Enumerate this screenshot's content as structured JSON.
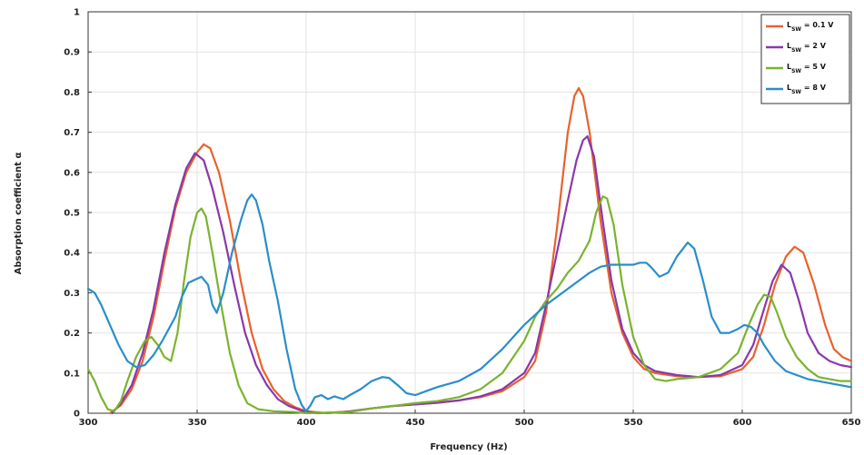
{
  "chart_data": {
    "type": "line",
    "title": "",
    "xlabel": "Frequency (Hz)",
    "ylabel": "Absorption coefficient α",
    "xlim": [
      300,
      650
    ],
    "ylim": [
      0,
      1
    ],
    "xticks": [
      300,
      350,
      400,
      450,
      500,
      550,
      600,
      650
    ],
    "yticks": [
      0,
      0.1,
      0.2,
      0.3,
      0.4,
      0.5,
      0.6,
      0.7,
      0.8,
      0.9,
      1
    ],
    "ytick_labels": [
      "0",
      "0.1",
      "0.2",
      "0.3",
      "0.4",
      "0.5",
      "0.6",
      "0.7",
      "0.8",
      "0.9",
      "1"
    ],
    "grid": true,
    "legend_position": "top-right",
    "series": [
      {
        "name": "L_SW = 0.1 V",
        "legend_main": "L",
        "legend_sub": "SW",
        "legend_rest": " = 0.1 V",
        "color": "#e8622c",
        "points": [
          [
            310,
            0
          ],
          [
            315,
            0.02
          ],
          [
            320,
            0.06
          ],
          [
            325,
            0.13
          ],
          [
            330,
            0.24
          ],
          [
            335,
            0.38
          ],
          [
            340,
            0.51
          ],
          [
            345,
            0.6
          ],
          [
            350,
            0.65
          ],
          [
            353,
            0.67
          ],
          [
            356,
            0.66
          ],
          [
            360,
            0.6
          ],
          [
            365,
            0.48
          ],
          [
            370,
            0.33
          ],
          [
            375,
            0.2
          ],
          [
            380,
            0.11
          ],
          [
            385,
            0.06
          ],
          [
            390,
            0.03
          ],
          [
            395,
            0.015
          ],
          [
            400,
            0.005
          ],
          [
            410,
            0
          ],
          [
            420,
            0.005
          ],
          [
            430,
            0.012
          ],
          [
            440,
            0.018
          ],
          [
            450,
            0.022
          ],
          [
            460,
            0.026
          ],
          [
            470,
            0.032
          ],
          [
            480,
            0.04
          ],
          [
            490,
            0.055
          ],
          [
            500,
            0.09
          ],
          [
            505,
            0.13
          ],
          [
            510,
            0.25
          ],
          [
            515,
            0.46
          ],
          [
            520,
            0.7
          ],
          [
            523,
            0.79
          ],
          [
            525,
            0.81
          ],
          [
            527,
            0.79
          ],
          [
            530,
            0.7
          ],
          [
            535,
            0.48
          ],
          [
            540,
            0.3
          ],
          [
            545,
            0.2
          ],
          [
            550,
            0.14
          ],
          [
            555,
            0.11
          ],
          [
            560,
            0.1
          ],
          [
            570,
            0.092
          ],
          [
            580,
            0.09
          ],
          [
            590,
            0.092
          ],
          [
            600,
            0.11
          ],
          [
            605,
            0.14
          ],
          [
            610,
            0.22
          ],
          [
            615,
            0.32
          ],
          [
            620,
            0.39
          ],
          [
            624,
            0.415
          ],
          [
            628,
            0.4
          ],
          [
            633,
            0.32
          ],
          [
            638,
            0.22
          ],
          [
            642,
            0.16
          ],
          [
            646,
            0.14
          ],
          [
            650,
            0.13
          ]
        ]
      },
      {
        "name": "L_SW = 2 V",
        "legend_main": "L",
        "legend_sub": "SW",
        "legend_rest": " = 2 V",
        "color": "#8a37ab",
        "points": [
          [
            311,
            0
          ],
          [
            315,
            0.025
          ],
          [
            320,
            0.07
          ],
          [
            325,
            0.15
          ],
          [
            330,
            0.26
          ],
          [
            335,
            0.4
          ],
          [
            340,
            0.52
          ],
          [
            345,
            0.61
          ],
          [
            349,
            0.648
          ],
          [
            353,
            0.63
          ],
          [
            357,
            0.56
          ],
          [
            362,
            0.45
          ],
          [
            367,
            0.32
          ],
          [
            372,
            0.2
          ],
          [
            377,
            0.12
          ],
          [
            382,
            0.07
          ],
          [
            387,
            0.035
          ],
          [
            392,
            0.018
          ],
          [
            398,
            0.006
          ],
          [
            405,
            0
          ],
          [
            420,
            0.004
          ],
          [
            430,
            0.012
          ],
          [
            440,
            0.018
          ],
          [
            450,
            0.022
          ],
          [
            460,
            0.026
          ],
          [
            470,
            0.032
          ],
          [
            480,
            0.042
          ],
          [
            490,
            0.06
          ],
          [
            500,
            0.1
          ],
          [
            505,
            0.15
          ],
          [
            510,
            0.27
          ],
          [
            515,
            0.4
          ],
          [
            520,
            0.53
          ],
          [
            524,
            0.63
          ],
          [
            527,
            0.68
          ],
          [
            529,
            0.69
          ],
          [
            532,
            0.64
          ],
          [
            536,
            0.48
          ],
          [
            540,
            0.33
          ],
          [
            545,
            0.21
          ],
          [
            550,
            0.15
          ],
          [
            555,
            0.12
          ],
          [
            560,
            0.105
          ],
          [
            570,
            0.095
          ],
          [
            580,
            0.09
          ],
          [
            590,
            0.095
          ],
          [
            600,
            0.12
          ],
          [
            605,
            0.17
          ],
          [
            610,
            0.26
          ],
          [
            614,
            0.33
          ],
          [
            618,
            0.37
          ],
          [
            622,
            0.35
          ],
          [
            626,
            0.28
          ],
          [
            630,
            0.2
          ],
          [
            635,
            0.15
          ],
          [
            640,
            0.13
          ],
          [
            645,
            0.12
          ],
          [
            650,
            0.115
          ]
        ]
      },
      {
        "name": "L_SW = 5 V",
        "legend_main": "L",
        "legend_sub": "SW",
        "legend_rest": " = 5 V",
        "color": "#7ab32e",
        "points": [
          [
            300,
            0.11
          ],
          [
            303,
            0.08
          ],
          [
            306,
            0.04
          ],
          [
            309,
            0.01
          ],
          [
            312,
            0.005
          ],
          [
            315,
            0.03
          ],
          [
            318,
            0.08
          ],
          [
            322,
            0.14
          ],
          [
            326,
            0.18
          ],
          [
            329,
            0.19
          ],
          [
            332,
            0.17
          ],
          [
            335,
            0.14
          ],
          [
            338,
            0.13
          ],
          [
            341,
            0.2
          ],
          [
            344,
            0.33
          ],
          [
            347,
            0.44
          ],
          [
            350,
            0.5
          ],
          [
            352,
            0.51
          ],
          [
            354,
            0.49
          ],
          [
            357,
            0.4
          ],
          [
            361,
            0.27
          ],
          [
            365,
            0.15
          ],
          [
            369,
            0.07
          ],
          [
            373,
            0.025
          ],
          [
            378,
            0.01
          ],
          [
            385,
            0.005
          ],
          [
            395,
            0.003
          ],
          [
            400,
            0
          ],
          [
            420,
            0.003
          ],
          [
            430,
            0.012
          ],
          [
            440,
            0.018
          ],
          [
            450,
            0.025
          ],
          [
            460,
            0.03
          ],
          [
            470,
            0.04
          ],
          [
            480,
            0.06
          ],
          [
            490,
            0.1
          ],
          [
            500,
            0.18
          ],
          [
            505,
            0.24
          ],
          [
            510,
            0.28
          ],
          [
            515,
            0.31
          ],
          [
            520,
            0.35
          ],
          [
            525,
            0.38
          ],
          [
            530,
            0.43
          ],
          [
            533,
            0.5
          ],
          [
            536,
            0.54
          ],
          [
            538,
            0.535
          ],
          [
            541,
            0.47
          ],
          [
            545,
            0.32
          ],
          [
            550,
            0.19
          ],
          [
            555,
            0.12
          ],
          [
            560,
            0.085
          ],
          [
            565,
            0.08
          ],
          [
            570,
            0.085
          ],
          [
            580,
            0.09
          ],
          [
            590,
            0.11
          ],
          [
            598,
            0.15
          ],
          [
            603,
            0.22
          ],
          [
            607,
            0.27
          ],
          [
            610,
            0.295
          ],
          [
            613,
            0.29
          ],
          [
            616,
            0.25
          ],
          [
            620,
            0.19
          ],
          [
            625,
            0.14
          ],
          [
            630,
            0.11
          ],
          [
            635,
            0.09
          ],
          [
            640,
            0.085
          ],
          [
            645,
            0.08
          ],
          [
            650,
            0.08
          ]
        ]
      },
      {
        "name": "L_SW = 8 V",
        "legend_main": "L",
        "legend_sub": "SW",
        "legend_rest": " = 8 V",
        "color": "#2a8ec9",
        "points": [
          [
            300,
            0.31
          ],
          [
            303,
            0.3
          ],
          [
            306,
            0.27
          ],
          [
            310,
            0.22
          ],
          [
            314,
            0.17
          ],
          [
            318,
            0.13
          ],
          [
            322,
            0.115
          ],
          [
            326,
            0.12
          ],
          [
            330,
            0.145
          ],
          [
            334,
            0.18
          ],
          [
            337,
            0.21
          ],
          [
            340,
            0.24
          ],
          [
            343,
            0.29
          ],
          [
            346,
            0.325
          ],
          [
            350,
            0.335
          ],
          [
            352,
            0.34
          ],
          [
            355,
            0.32
          ],
          [
            357,
            0.27
          ],
          [
            359,
            0.25
          ],
          [
            362,
            0.3
          ],
          [
            366,
            0.4
          ],
          [
            370,
            0.48
          ],
          [
            373,
            0.53
          ],
          [
            375,
            0.545
          ],
          [
            377,
            0.53
          ],
          [
            380,
            0.47
          ],
          [
            383,
            0.38
          ],
          [
            387,
            0.28
          ],
          [
            391,
            0.16
          ],
          [
            395,
            0.06
          ],
          [
            398,
            0.02
          ],
          [
            400,
            0.005
          ],
          [
            402,
            0.02
          ],
          [
            404,
            0.04
          ],
          [
            407,
            0.045
          ],
          [
            410,
            0.035
          ],
          [
            413,
            0.042
          ],
          [
            417,
            0.035
          ],
          [
            420,
            0.045
          ],
          [
            425,
            0.06
          ],
          [
            430,
            0.08
          ],
          [
            435,
            0.09
          ],
          [
            438,
            0.088
          ],
          [
            442,
            0.07
          ],
          [
            446,
            0.05
          ],
          [
            450,
            0.045
          ],
          [
            455,
            0.055
          ],
          [
            460,
            0.065
          ],
          [
            470,
            0.08
          ],
          [
            480,
            0.11
          ],
          [
            490,
            0.16
          ],
          [
            500,
            0.22
          ],
          [
            510,
            0.27
          ],
          [
            520,
            0.31
          ],
          [
            525,
            0.33
          ],
          [
            530,
            0.35
          ],
          [
            535,
            0.365
          ],
          [
            540,
            0.37
          ],
          [
            545,
            0.37
          ],
          [
            550,
            0.37
          ],
          [
            553,
            0.375
          ],
          [
            556,
            0.375
          ],
          [
            558,
            0.365
          ],
          [
            562,
            0.34
          ],
          [
            566,
            0.35
          ],
          [
            570,
            0.39
          ],
          [
            575,
            0.425
          ],
          [
            578,
            0.41
          ],
          [
            582,
            0.33
          ],
          [
            586,
            0.24
          ],
          [
            590,
            0.2
          ],
          [
            594,
            0.2
          ],
          [
            598,
            0.21
          ],
          [
            601,
            0.22
          ],
          [
            604,
            0.215
          ],
          [
            607,
            0.2
          ],
          [
            610,
            0.17
          ],
          [
            615,
            0.13
          ],
          [
            620,
            0.105
          ],
          [
            625,
            0.095
          ],
          [
            630,
            0.085
          ],
          [
            640,
            0.075
          ],
          [
            650,
            0.065
          ]
        ]
      }
    ]
  }
}
